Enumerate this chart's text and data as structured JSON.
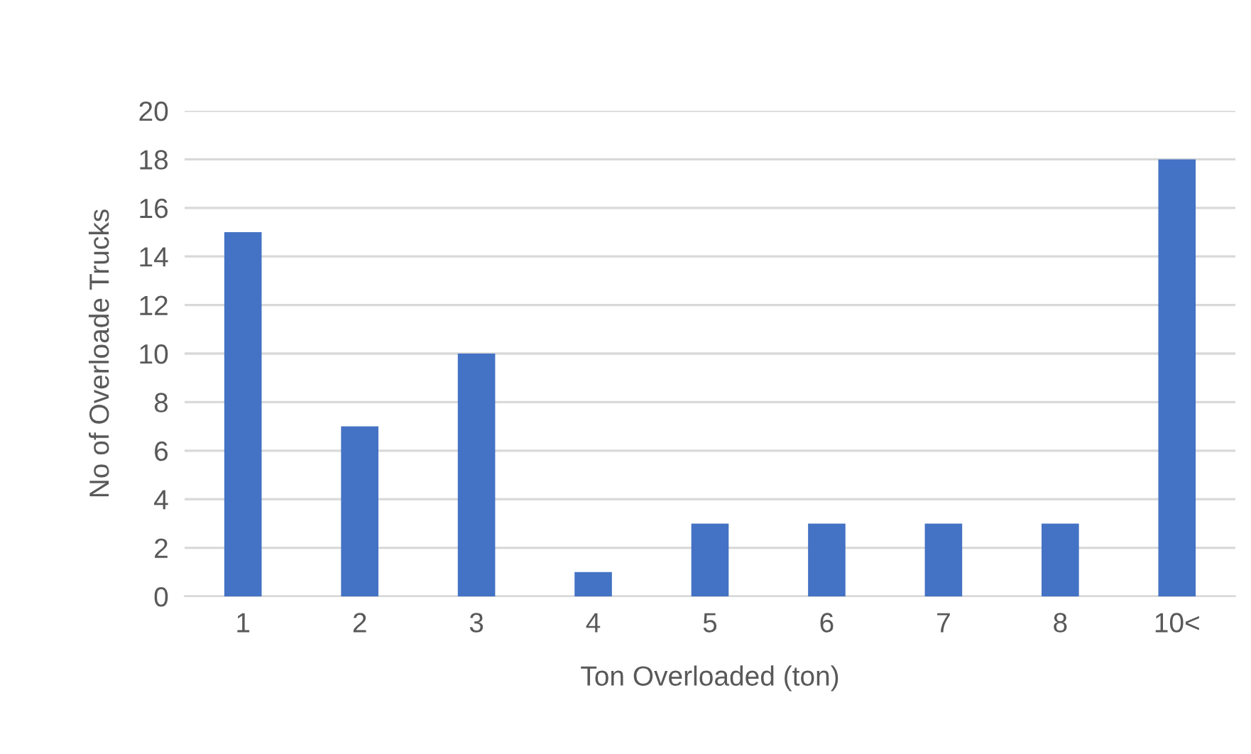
{
  "chart_data": {
    "type": "bar",
    "xlabel": "Ton Overloaded (ton)",
    "ylabel": "No of Overloade Trucks",
    "categories": [
      "1",
      "2",
      "3",
      "4",
      "5",
      "6",
      "7",
      "8",
      "10<"
    ],
    "values": [
      15,
      7,
      10,
      1,
      3,
      3,
      3,
      3,
      18
    ],
    "color": "#4472c4",
    "ylim": [
      0,
      20
    ],
    "yticks": [
      0,
      2,
      4,
      6,
      8,
      10,
      12,
      14,
      16,
      18,
      20
    ],
    "grid": "y"
  }
}
